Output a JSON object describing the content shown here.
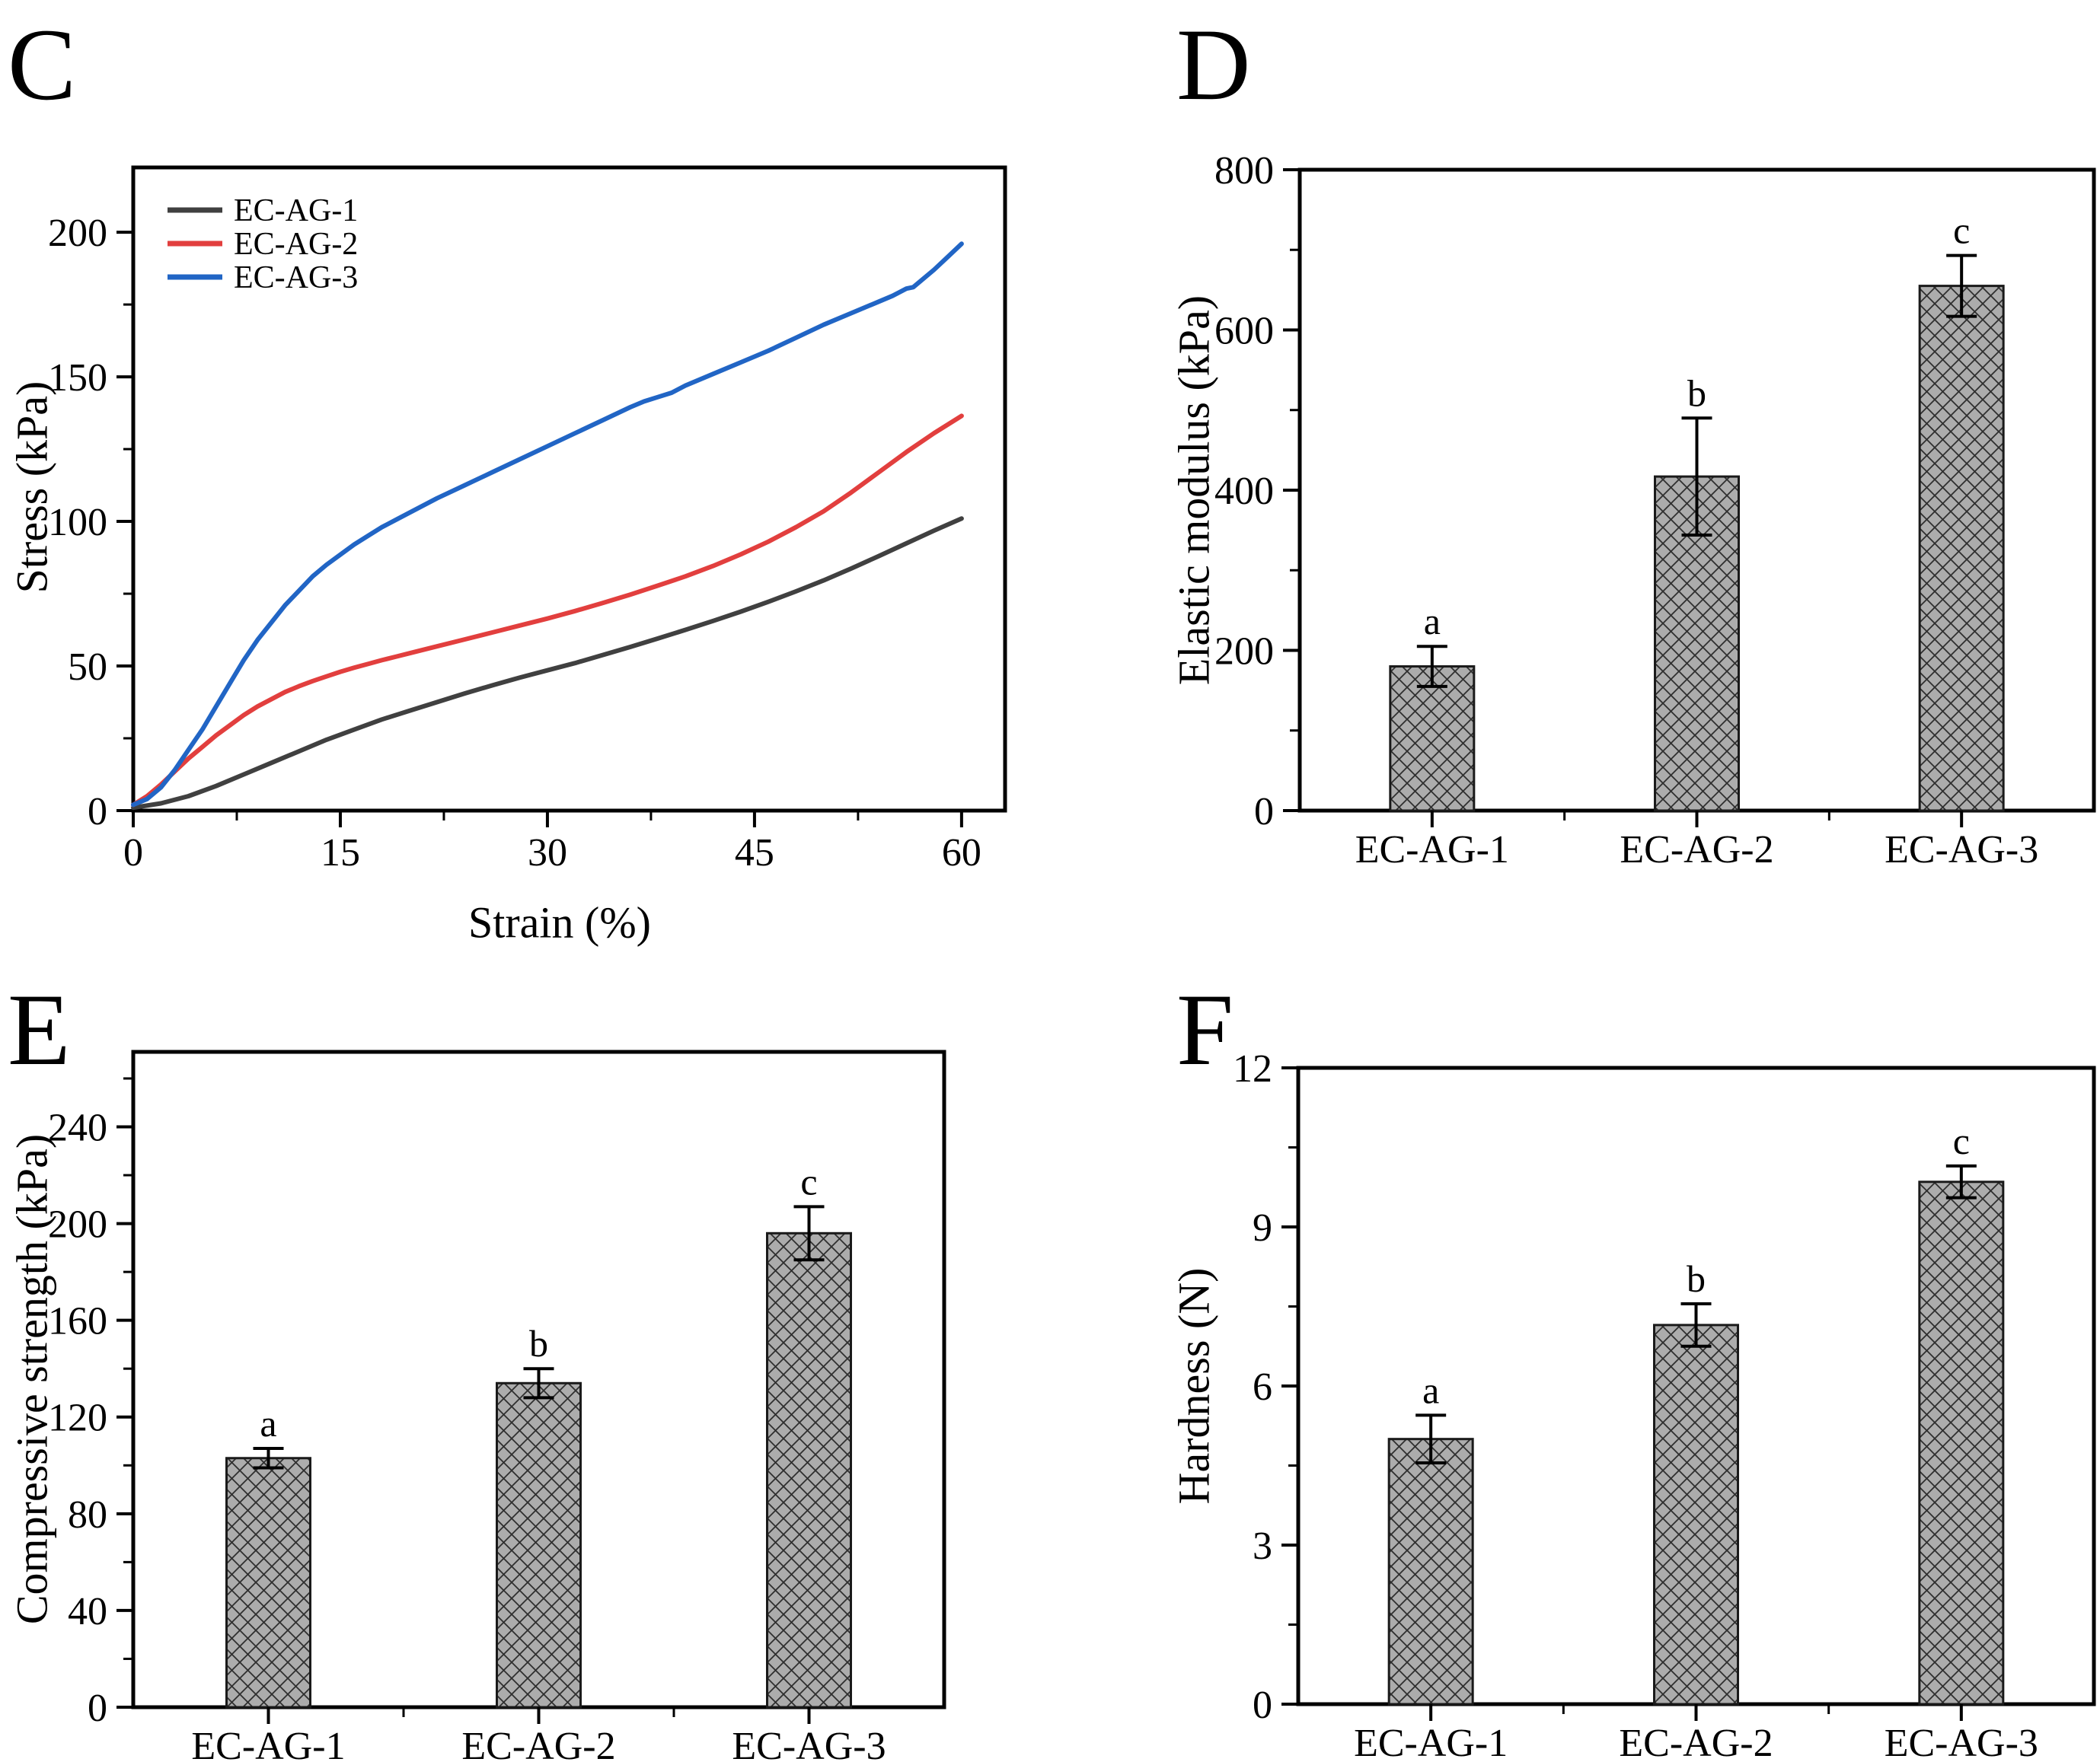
{
  "page": {
    "background": "#ffffff"
  },
  "styles": {
    "axis_color": "#000000",
    "bar_fill": "#acacac",
    "bar_edge": "#1a1a1a",
    "hatch_color": "#2f2f2f",
    "error_bar_color": "#000000"
  },
  "chart_data": [
    {
      "panel_letter": "C",
      "type": "line",
      "xlabel": "Strain (%)",
      "ylabel": "Stress (kPa)",
      "xlim": [
        0,
        63.15
      ],
      "ylim": [
        0,
        222.4
      ],
      "xticks": [
        0,
        15,
        30,
        45,
        60
      ],
      "yticks": [
        0,
        50,
        100,
        150,
        200
      ],
      "x_minor_step": 7.5,
      "y_minor_step": 25,
      "grid": "off",
      "legend_position": "top-left",
      "series": [
        {
          "name": "EC-AG-1",
          "color": "#404040",
          "points": [
            [
              0,
              1
            ],
            [
              2,
              2.5
            ],
            [
              4,
              5
            ],
            [
              6,
              8.5
            ],
            [
              8,
              12.5
            ],
            [
              10,
              16.5
            ],
            [
              12,
              20.5
            ],
            [
              14,
              24.5
            ],
            [
              16,
              28
            ],
            [
              18,
              31.5
            ],
            [
              20,
              34.5
            ],
            [
              22,
              37.5
            ],
            [
              24,
              40.5
            ],
            [
              26,
              43.3
            ],
            [
              28,
              46
            ],
            [
              30,
              48.5
            ],
            [
              32,
              51
            ],
            [
              34,
              53.8
            ],
            [
              36,
              56.6
            ],
            [
              38,
              59.5
            ],
            [
              40,
              62.5
            ],
            [
              42,
              65.6
            ],
            [
              44,
              68.8
            ],
            [
              46,
              72.2
            ],
            [
              48,
              75.8
            ],
            [
              50,
              79.6
            ],
            [
              52,
              83.7
            ],
            [
              54,
              88
            ],
            [
              56,
              92.4
            ],
            [
              58,
              96.8
            ],
            [
              60,
              101
            ]
          ]
        },
        {
          "name": "EC-AG-2",
          "color": "#e23f3e",
          "points": [
            [
              0,
              2
            ],
            [
              1,
              5
            ],
            [
              2,
              9
            ],
            [
              3,
              13.5
            ],
            [
              4,
              18
            ],
            [
              5,
              22
            ],
            [
              6,
              26
            ],
            [
              7,
              29.5
            ],
            [
              8,
              33
            ],
            [
              9,
              36
            ],
            [
              10,
              38.5
            ],
            [
              11,
              41
            ],
            [
              12,
              43
            ],
            [
              13,
              44.8
            ],
            [
              14,
              46.4
            ],
            [
              15,
              48
            ],
            [
              16,
              49.4
            ],
            [
              17,
              50.7
            ],
            [
              18,
              52
            ],
            [
              19,
              53.2
            ],
            [
              20,
              54.4
            ],
            [
              22,
              56.8
            ],
            [
              24,
              59.2
            ],
            [
              26,
              61.6
            ],
            [
              28,
              64
            ],
            [
              30,
              66.4
            ],
            [
              32,
              69
            ],
            [
              34,
              71.8
            ],
            [
              36,
              74.7
            ],
            [
              38,
              77.8
            ],
            [
              40,
              81
            ],
            [
              42,
              84.6
            ],
            [
              44,
              88.6
            ],
            [
              46,
              93
            ],
            [
              48,
              98
            ],
            [
              50,
              103.5
            ],
            [
              52,
              110
            ],
            [
              54,
              117
            ],
            [
              56,
              124
            ],
            [
              58,
              130.5
            ],
            [
              60,
              136.5
            ]
          ]
        },
        {
          "name": "EC-AG-3",
          "color": "#2165c5",
          "points": [
            [
              0,
              2
            ],
            [
              1,
              4
            ],
            [
              2,
              8
            ],
            [
              3,
              14
            ],
            [
              4,
              21
            ],
            [
              5,
              28
            ],
            [
              6,
              36
            ],
            [
              7,
              44
            ],
            [
              8,
              52
            ],
            [
              9,
              59
            ],
            [
              10,
              65
            ],
            [
              11,
              71
            ],
            [
              12,
              76
            ],
            [
              13,
              81
            ],
            [
              14,
              85
            ],
            [
              15,
              88.5
            ],
            [
              16,
              92
            ],
            [
              17,
              95
            ],
            [
              18,
              98
            ],
            [
              19,
              100.5
            ],
            [
              20,
              103
            ],
            [
              22,
              108
            ],
            [
              24,
              112.5
            ],
            [
              26,
              117
            ],
            [
              28,
              121.5
            ],
            [
              30,
              126
            ],
            [
              32,
              130.5
            ],
            [
              34,
              135
            ],
            [
              36,
              139.5
            ],
            [
              37,
              141.5
            ],
            [
              38,
              143
            ],
            [
              39,
              144.5
            ],
            [
              40,
              147
            ],
            [
              42,
              151
            ],
            [
              44,
              155
            ],
            [
              46,
              159
            ],
            [
              48,
              163.5
            ],
            [
              50,
              168
            ],
            [
              52,
              172
            ],
            [
              54,
              176
            ],
            [
              55,
              178
            ],
            [
              56,
              180.5
            ],
            [
              56.5,
              181
            ],
            [
              57,
              183
            ],
            [
              58,
              187
            ],
            [
              59,
              191.5
            ],
            [
              60,
              196
            ]
          ]
        }
      ]
    },
    {
      "panel_letter": "D",
      "type": "bar",
      "ylabel": "Elastic modulus (kPa)",
      "ylim": [
        0,
        800
      ],
      "yticks": [
        0,
        200,
        400,
        600,
        800
      ],
      "y_minor_step": 100,
      "grid": "off",
      "categories": [
        "EC-AG-1",
        "EC-AG-2",
        "EC-AG-3"
      ],
      "values": [
        180,
        417,
        655
      ],
      "errors": [
        25,
        73,
        38
      ],
      "sig_letters": [
        "a",
        "b",
        "c"
      ]
    },
    {
      "panel_letter": "E",
      "type": "bar",
      "ylabel": "Compressive strength (kPa)",
      "ylim": [
        0,
        271
      ],
      "yticks": [
        0,
        40,
        80,
        120,
        160,
        200,
        240
      ],
      "y_minor_step": 20,
      "grid": "off",
      "categories": [
        "EC-AG-1",
        "EC-AG-2",
        "EC-AG-3"
      ],
      "values": [
        103,
        134,
        196
      ],
      "errors": [
        4,
        6,
        11
      ],
      "sig_letters": [
        "a",
        "b",
        "c"
      ]
    },
    {
      "panel_letter": "F",
      "type": "bar",
      "ylabel": "Hardness (N)",
      "ylim": [
        0,
        12
      ],
      "yticks": [
        0,
        3,
        6,
        9,
        12
      ],
      "y_minor_step": 1.5,
      "grid": "off",
      "categories": [
        "EC-AG-1",
        "EC-AG-2",
        "EC-AG-3"
      ],
      "values": [
        5.0,
        7.15,
        9.85
      ],
      "errors": [
        0.45,
        0.4,
        0.3
      ],
      "sig_letters": [
        "a",
        "b",
        "c"
      ]
    }
  ]
}
